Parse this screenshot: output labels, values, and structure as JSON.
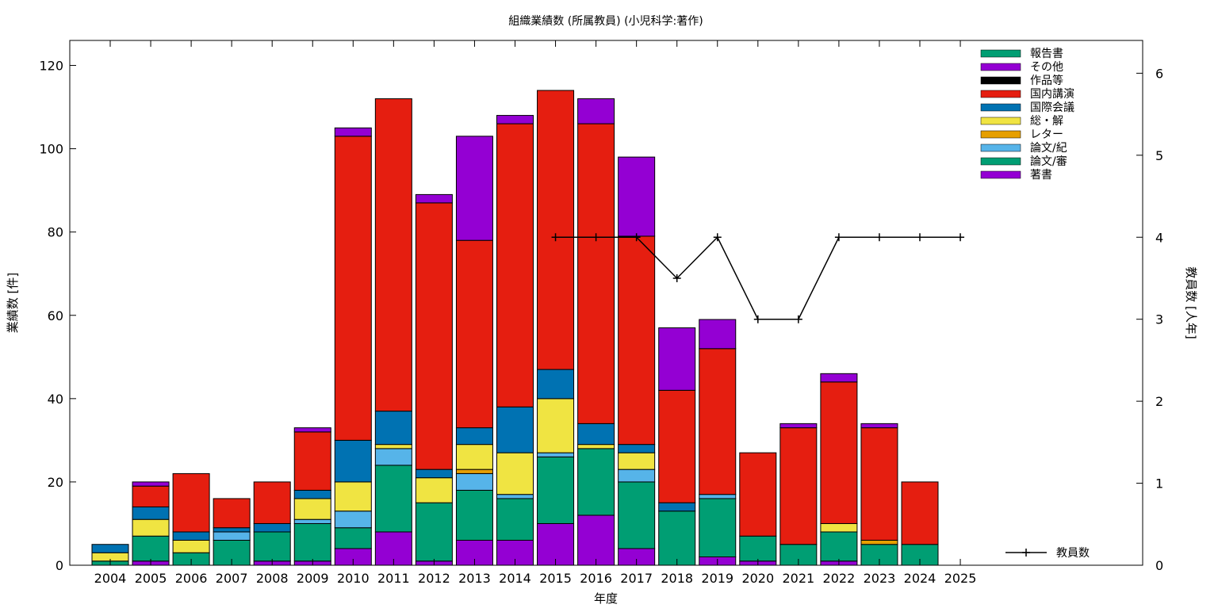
{
  "chart_data": {
    "type": "bar",
    "title": "組織業績数 (所属教員) (小児科学:著作)",
    "xlabel": "年度",
    "ylabel": "業績数 [件]",
    "y2label": "教員数 [人年]",
    "ylim": [
      0,
      126
    ],
    "y2lim": [
      0,
      6.4
    ],
    "yticks": [
      0,
      20,
      40,
      60,
      80,
      100,
      120
    ],
    "y2ticks": [
      0,
      1,
      2,
      3,
      4,
      5,
      6
    ],
    "grid": false,
    "legend_position": "top-right",
    "categories": [
      "2004",
      "2005",
      "2006",
      "2007",
      "2008",
      "2009",
      "2010",
      "2011",
      "2012",
      "2013",
      "2014",
      "2015",
      "2016",
      "2017",
      "2018",
      "2019",
      "2020",
      "2021",
      "2022",
      "2023",
      "2024",
      "2025"
    ],
    "stack_series": [
      {
        "name": "著書",
        "color": "#9400d3",
        "values": [
          0,
          1,
          0,
          0,
          1,
          1,
          4,
          8,
          1,
          6,
          6,
          10,
          12,
          4,
          0,
          2,
          1,
          0,
          1,
          0,
          0,
          0
        ]
      },
      {
        "name": "論文/審",
        "color": "#009e73",
        "values": [
          1,
          6,
          3,
          6,
          7,
          9,
          5,
          16,
          14,
          12,
          10,
          16,
          16,
          16,
          13,
          14,
          6,
          5,
          7,
          5,
          5,
          0
        ]
      },
      {
        "name": "論文/紀",
        "color": "#56b4e9",
        "values": [
          0,
          0,
          0,
          2,
          0,
          1,
          4,
          4,
          0,
          4,
          1,
          1,
          0,
          3,
          0,
          1,
          0,
          0,
          0,
          0,
          0,
          0
        ]
      },
      {
        "name": "レター",
        "color": "#e69f00",
        "values": [
          0,
          0,
          0,
          0,
          0,
          0,
          0,
          0,
          0,
          1,
          0,
          0,
          0,
          0,
          0,
          0,
          0,
          0,
          0,
          1,
          0,
          0
        ]
      },
      {
        "name": "総・解",
        "color": "#f0e442",
        "values": [
          2,
          4,
          3,
          0,
          0,
          5,
          7,
          1,
          6,
          6,
          10,
          13,
          1,
          4,
          0,
          0,
          0,
          0,
          2,
          0,
          0,
          0
        ]
      },
      {
        "name": "国際会議",
        "color": "#0072b2",
        "values": [
          2,
          3,
          2,
          1,
          2,
          2,
          10,
          8,
          2,
          4,
          11,
          7,
          5,
          2,
          2,
          0,
          0,
          0,
          0,
          0,
          0,
          0
        ]
      },
      {
        "name": "国内講演",
        "color": "#e51e10",
        "values": [
          0,
          5,
          14,
          7,
          10,
          14,
          73,
          75,
          64,
          45,
          68,
          67,
          72,
          50,
          27,
          35,
          20,
          28,
          34,
          27,
          15,
          0
        ]
      },
      {
        "name": "作品等",
        "color": "#000000",
        "values": [
          0,
          0,
          0,
          0,
          0,
          0,
          0,
          0,
          0,
          0,
          0,
          0,
          0,
          0,
          0,
          0,
          0,
          0,
          0,
          0,
          0,
          0
        ]
      },
      {
        "name": "その他",
        "color": "#9400d3",
        "values": [
          0,
          1,
          0,
          0,
          0,
          1,
          2,
          0,
          2,
          25,
          2,
          0,
          6,
          19,
          15,
          7,
          0,
          1,
          2,
          1,
          0,
          0
        ]
      },
      {
        "name": "報告書",
        "color": "#009e73",
        "values": [
          0,
          0,
          0,
          0,
          0,
          0,
          0,
          0,
          0,
          0,
          0,
          0,
          0,
          0,
          0,
          0,
          0,
          0,
          0,
          0,
          0,
          0
        ]
      }
    ],
    "line_series": {
      "name": "教員数",
      "color": "#000000",
      "x": [
        "2015",
        "2016",
        "2017",
        "2018",
        "2019",
        "2020",
        "2021",
        "2022",
        "2023",
        "2024",
        "2025"
      ],
      "values": [
        4,
        4,
        4,
        3.5,
        4,
        3,
        3,
        4,
        4,
        4,
        4
      ]
    }
  }
}
